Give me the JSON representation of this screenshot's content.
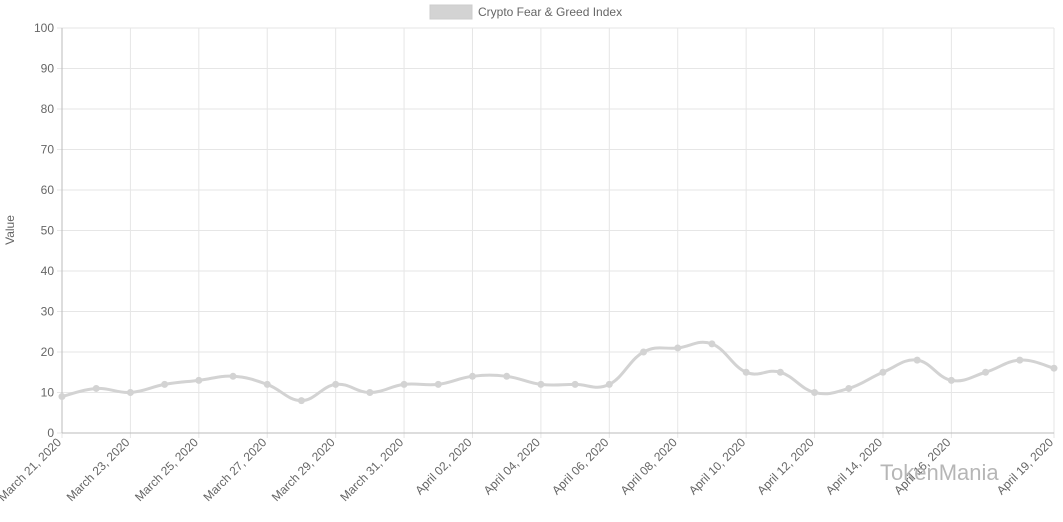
{
  "chart_data": {
    "type": "line",
    "y_label": "Value",
    "categories": [
      "March 21, 2020",
      null,
      "March 23, 2020",
      null,
      "March 25, 2020",
      null,
      "March 27, 2020",
      null,
      "March 29, 2020",
      null,
      "March 31, 2020",
      null,
      "April 02, 2020",
      null,
      "April 04, 2020",
      null,
      "April 06, 2020",
      null,
      "April 08, 2020",
      null,
      "April 10, 2020",
      null,
      "April 12, 2020",
      null,
      "April 14, 2020",
      null,
      "April 16, 2020",
      null,
      null,
      "April 19, 2020"
    ],
    "series": [
      {
        "name": "Crypto Fear & Greed Index",
        "color": "#d3d3d3",
        "values": [
          9,
          11,
          10,
          12,
          13,
          14,
          12,
          8,
          12,
          10,
          12,
          12,
          14,
          14,
          12,
          12,
          12,
          20,
          21,
          22,
          15,
          15,
          10,
          11,
          15,
          18,
          13,
          15,
          18,
          16
        ]
      }
    ],
    "ylim": [
      0,
      100
    ],
    "yticks": [
      0,
      10,
      20,
      30,
      40,
      50,
      60,
      70,
      80,
      90,
      100
    ],
    "grid": true,
    "legend": "top",
    "watermark": "TokenMania"
  }
}
